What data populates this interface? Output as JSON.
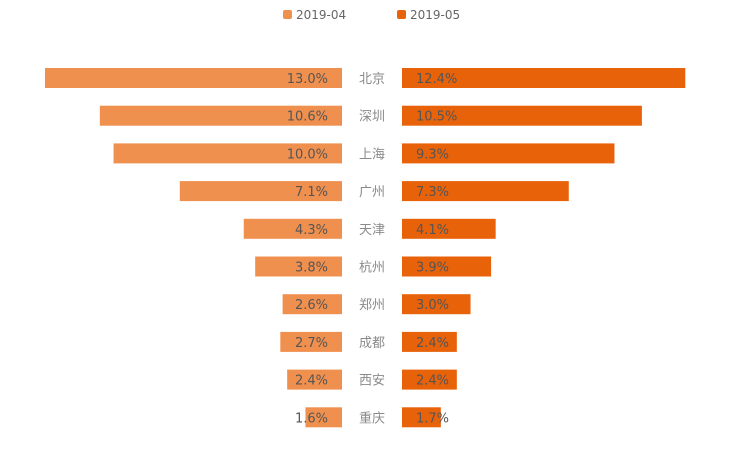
{
  "chart_data": {
    "type": "bar",
    "orientation": "horizontal-butterfly",
    "categories": [
      "北京",
      "深圳",
      "上海",
      "广州",
      "天津",
      "杭州",
      "郑州",
      "成都",
      "西安",
      "重庆"
    ],
    "series": [
      {
        "name": "2019-04",
        "color": "#f0904f",
        "values": [
          13.0,
          10.6,
          10.0,
          7.1,
          4.3,
          3.8,
          2.6,
          2.7,
          2.4,
          1.6
        ],
        "labels": [
          "13.0%",
          "10.6%",
          "10.0%",
          "7.1%",
          "4.3%",
          "3.8%",
          "2.6%",
          "2.7%",
          "2.4%",
          "1.6%"
        ]
      },
      {
        "name": "2019-05",
        "color": "#e8620a",
        "values": [
          12.4,
          10.5,
          9.3,
          7.3,
          4.1,
          3.9,
          3.0,
          2.4,
          2.4,
          1.7
        ],
        "labels": [
          "12.4%",
          "10.5%",
          "9.3%",
          "7.3%",
          "4.1%",
          "3.9%",
          "3.0%",
          "2.4%",
          "2.4%",
          "1.7%"
        ]
      }
    ],
    "legend_position": "top-center",
    "grid": false
  }
}
